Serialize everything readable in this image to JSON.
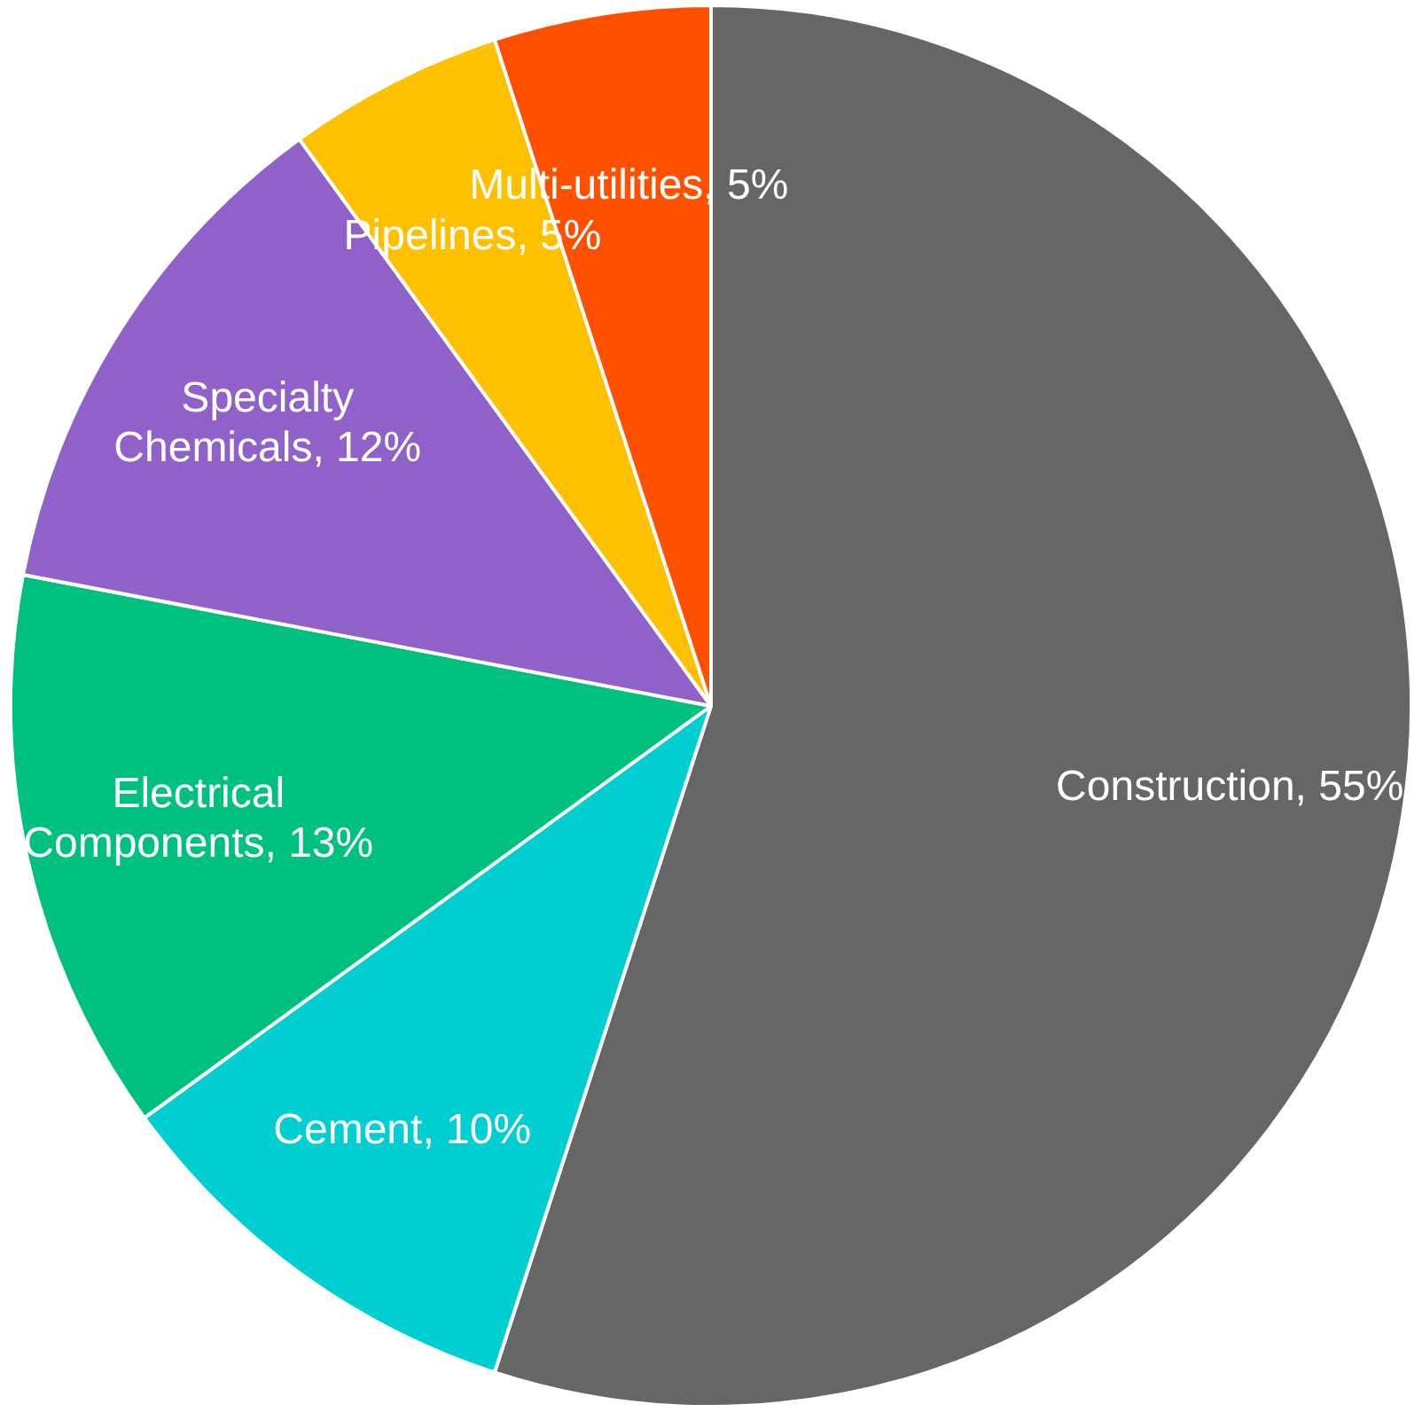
{
  "chart_data": {
    "type": "pie",
    "categories": [
      "Construction",
      "Cement",
      "Electrical Components",
      "Specialty Chemicals",
      "Pipelines",
      "Multi-utilities"
    ],
    "values": [
      55,
      10,
      13,
      12,
      5,
      5
    ],
    "value_labels": [
      "55%",
      "10%",
      "13%",
      "12%",
      "5%",
      "5%"
    ],
    "colors": [
      "#666666",
      "#00ced1",
      "#00c080",
      "#9062c9",
      "#ffc000",
      "#ff5000"
    ]
  }
}
